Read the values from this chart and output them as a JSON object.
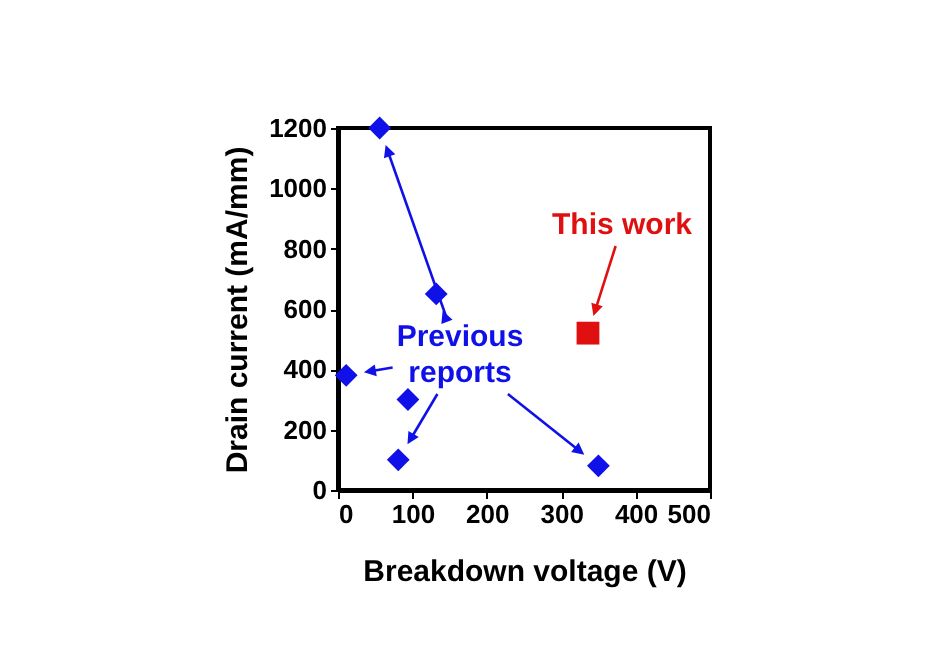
{
  "chart_data": {
    "type": "scatter",
    "xlabel": "Breakdown voltage (V)",
    "ylabel": "Drain current (mA/mm)",
    "xlim": [
      0,
      500
    ],
    "xticks": [
      0,
      100,
      200,
      300,
      400,
      500
    ],
    "ylim": [
      0,
      1200
    ],
    "yticks": [
      0,
      200,
      400,
      600,
      800,
      1000,
      1200
    ],
    "grid": false,
    "series": [
      {
        "color": "#1010e8",
        "marker": "diamond",
        "x": [
          56,
          132,
          11,
          94,
          81,
          350
        ],
        "values": [
          1200,
          650,
          380,
          300,
          100,
          80
        ]
      },
      {
        "color": "#e01010",
        "marker": "square",
        "x": [
          336
        ],
        "values": [
          520
        ]
      }
    ],
    "annotations": [
      "Previous reports",
      "This work"
    ]
  }
}
